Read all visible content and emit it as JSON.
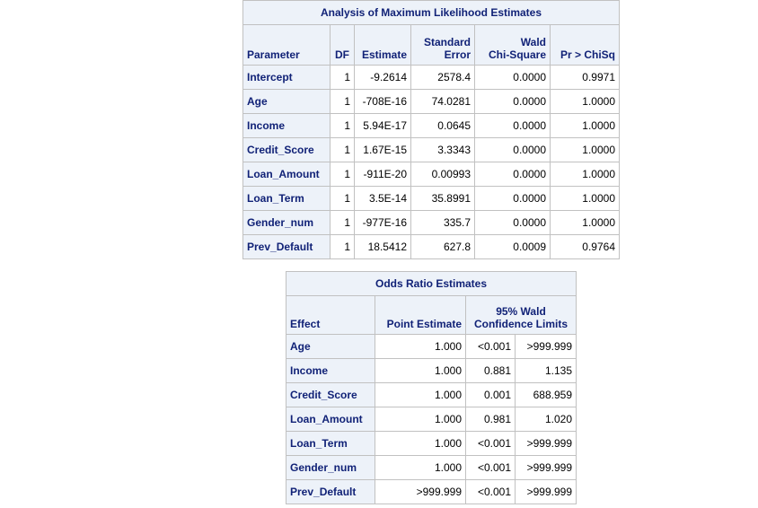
{
  "mle_table": {
    "title": "Analysis of Maximum Likelihood Estimates",
    "headers": {
      "parameter": "Parameter",
      "df": "DF",
      "estimate": "Estimate",
      "std_error_line1": "Standard",
      "std_error_line2": "Error",
      "wald_line1": "Wald",
      "wald_line2": "Chi-Square",
      "p_value": "Pr > ChiSq"
    },
    "rows": [
      {
        "parameter": "Intercept",
        "df": "1",
        "estimate": "-9.2614",
        "std_error": "2578.4",
        "chisq": "0.0000",
        "p": "0.9971"
      },
      {
        "parameter": "Age",
        "df": "1",
        "estimate": "-708E-16",
        "std_error": "74.0281",
        "chisq": "0.0000",
        "p": "1.0000"
      },
      {
        "parameter": "Income",
        "df": "1",
        "estimate": "5.94E-17",
        "std_error": "0.0645",
        "chisq": "0.0000",
        "p": "1.0000"
      },
      {
        "parameter": "Credit_Score",
        "df": "1",
        "estimate": "1.67E-15",
        "std_error": "3.3343",
        "chisq": "0.0000",
        "p": "1.0000"
      },
      {
        "parameter": "Loan_Amount",
        "df": "1",
        "estimate": "-911E-20",
        "std_error": "0.00993",
        "chisq": "0.0000",
        "p": "1.0000"
      },
      {
        "parameter": "Loan_Term",
        "df": "1",
        "estimate": "3.5E-14",
        "std_error": "35.8991",
        "chisq": "0.0000",
        "p": "1.0000"
      },
      {
        "parameter": "Gender_num",
        "df": "1",
        "estimate": "-977E-16",
        "std_error": "335.7",
        "chisq": "0.0000",
        "p": "1.0000"
      },
      {
        "parameter": "Prev_Default",
        "df": "1",
        "estimate": "18.5412",
        "std_error": "627.8",
        "chisq": "0.0009",
        "p": "0.9764"
      }
    ]
  },
  "odds_table": {
    "title": "Odds Ratio Estimates",
    "headers": {
      "effect": "Effect",
      "point_estimate": "Point Estimate",
      "ci_line1": "95% Wald",
      "ci_line2": "Confidence Limits"
    },
    "rows": [
      {
        "effect": "Age",
        "point": "1.000",
        "lower": "<0.001",
        "upper": ">999.999"
      },
      {
        "effect": "Income",
        "point": "1.000",
        "lower": "0.881",
        "upper": "1.135"
      },
      {
        "effect": "Credit_Score",
        "point": "1.000",
        "lower": "0.001",
        "upper": "688.959"
      },
      {
        "effect": "Loan_Amount",
        "point": "1.000",
        "lower": "0.981",
        "upper": "1.020"
      },
      {
        "effect": "Loan_Term",
        "point": "1.000",
        "lower": "<0.001",
        "upper": ">999.999"
      },
      {
        "effect": "Gender_num",
        "point": "1.000",
        "lower": "<0.001",
        "upper": ">999.999"
      },
      {
        "effect": "Prev_Default",
        "point": ">999.999",
        "lower": "<0.001",
        "upper": ">999.999"
      }
    ]
  },
  "colors": {
    "header_bg": "#edf2f9",
    "header_text": "#112277",
    "border": "#c1c1c1"
  }
}
